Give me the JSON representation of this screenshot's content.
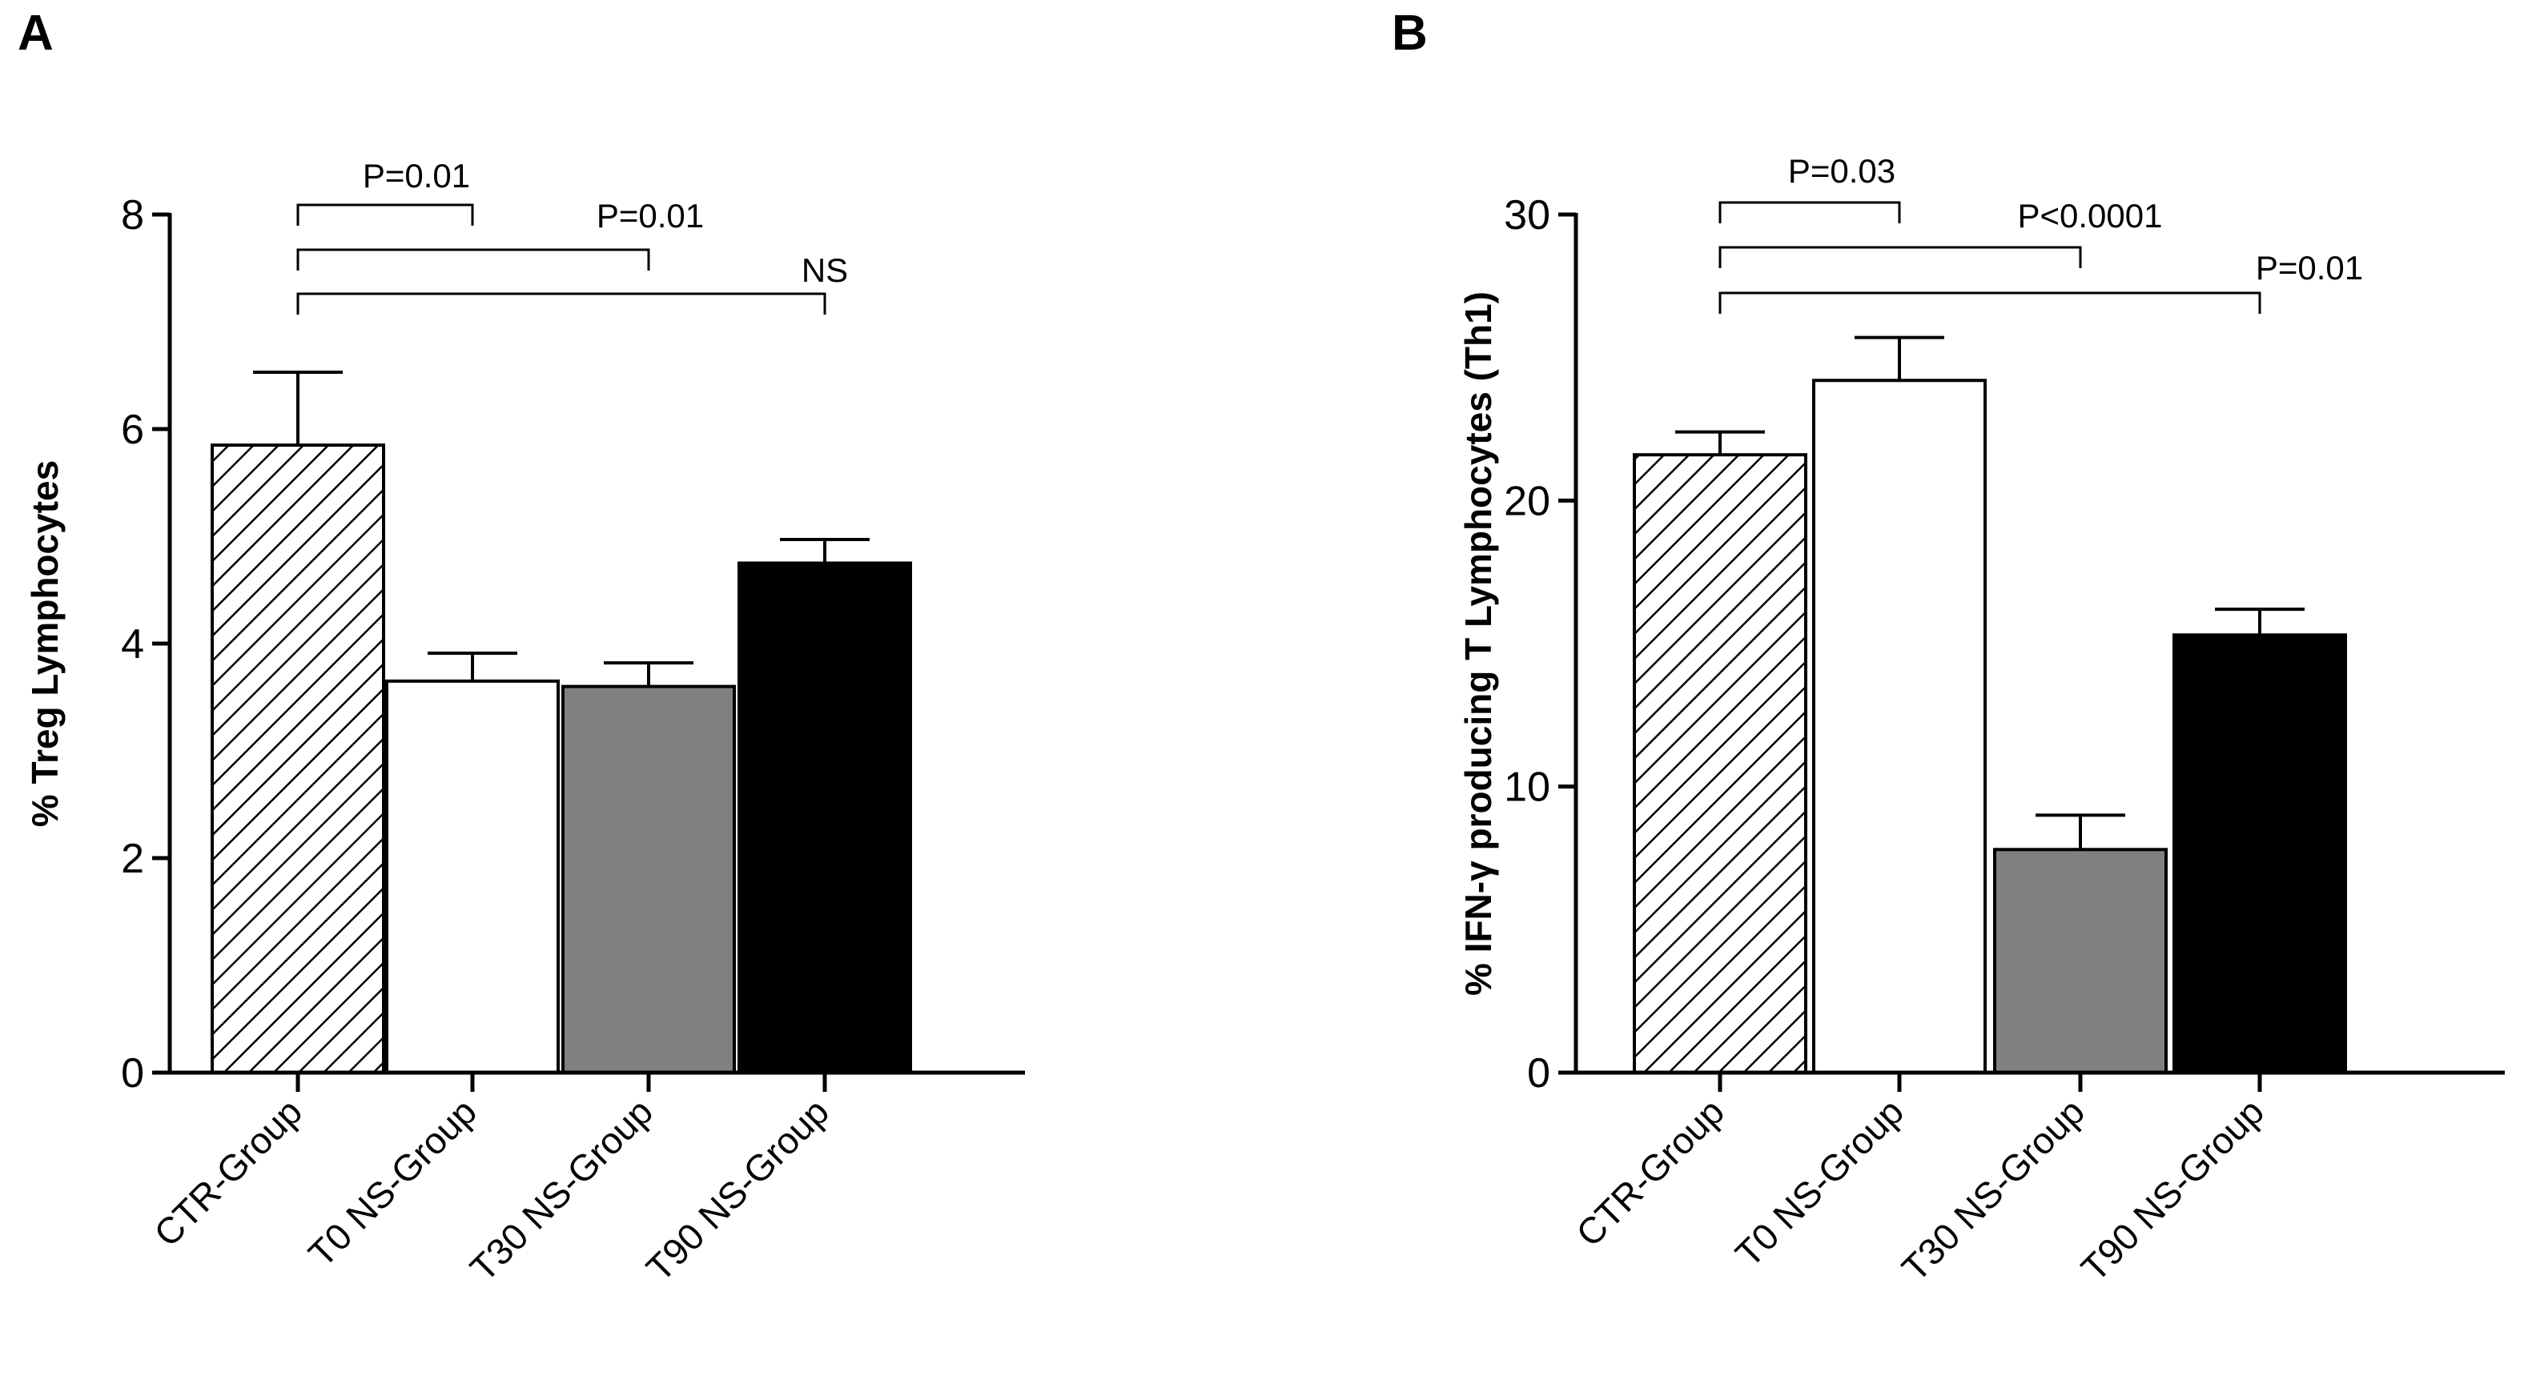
{
  "chart_data": [
    {
      "type": "bar",
      "panel_label": "A",
      "title": "",
      "xlabel": "",
      "ylabel": "% Treg  Lymphocytes",
      "ylim": [
        0,
        8
      ],
      "yticks": [
        "0",
        "2",
        "4",
        "6",
        "8"
      ],
      "categories": [
        "CTR-Group",
        "T0 NS-Group",
        "T30 NS-Group",
        "T90 NS-Group"
      ],
      "values": [
        5.85,
        3.65,
        3.6,
        4.75
      ],
      "errors": [
        0.68,
        0.26,
        0.22,
        0.22
      ],
      "fills": [
        "hatched",
        "#ffffff",
        "#808080",
        "#000000"
      ],
      "comparisons": [
        {
          "from": 0,
          "to": 1,
          "label": "P=0.01"
        },
        {
          "from": 0,
          "to": 2,
          "label": "P=0.01"
        },
        {
          "from": 0,
          "to": 3,
          "label": "NS"
        }
      ]
    },
    {
      "type": "bar",
      "panel_label": "B",
      "title": "",
      "xlabel": "",
      "ylabel": "% IFN-γ  producing T Lymphocytes (Th1)",
      "ylim": [
        0,
        30
      ],
      "yticks": [
        "0",
        "10",
        "20",
        "30"
      ],
      "categories": [
        "CTR-Group",
        "T0 NS-Group",
        "T30 NS-Group",
        "T90 NS-Group"
      ],
      "values": [
        21.6,
        24.2,
        7.8,
        15.3
      ],
      "errors": [
        0.8,
        1.5,
        1.2,
        0.9
      ],
      "fills": [
        "hatched",
        "#ffffff",
        "#808080",
        "#000000"
      ],
      "comparisons": [
        {
          "from": 0,
          "to": 1,
          "label": "P=0.03"
        },
        {
          "from": 0,
          "to": 2,
          "label": "P<0.0001"
        },
        {
          "from": 0,
          "to": 3,
          "label": "P=0.01"
        }
      ]
    }
  ]
}
